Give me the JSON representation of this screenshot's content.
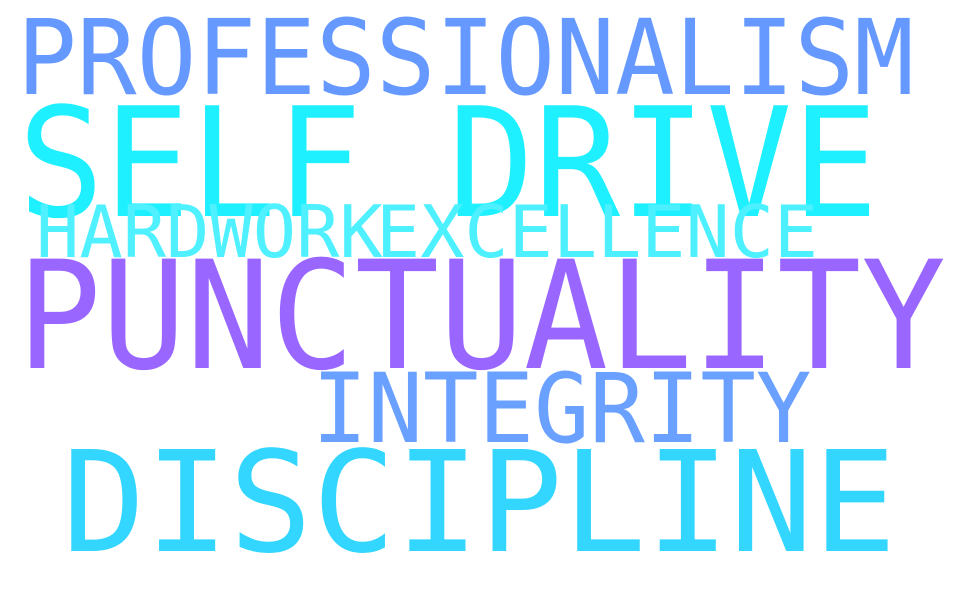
{
  "word_cloud": {
    "words": [
      {
        "id": "professionalism",
        "text": "PROFESSIONALISM",
        "color": "#6699ff"
      },
      {
        "id": "self_drive",
        "text": "SELF DRIVE",
        "color": "#1ef0ff"
      },
      {
        "id": "hardwork",
        "text": "HARDWORK",
        "color": "#4ff0ff"
      },
      {
        "id": "excellence",
        "text": "EXCELLENCE",
        "color": "#4cf0ff"
      },
      {
        "id": "punctuality",
        "text": "PUNCTUALITY",
        "color": "#9966ff"
      },
      {
        "id": "integrity",
        "text": "INTEGRITY",
        "color": "#6aa0ff"
      },
      {
        "id": "discipline",
        "text": "DISCIPLINE",
        "color": "#33d6ff"
      }
    ]
  }
}
